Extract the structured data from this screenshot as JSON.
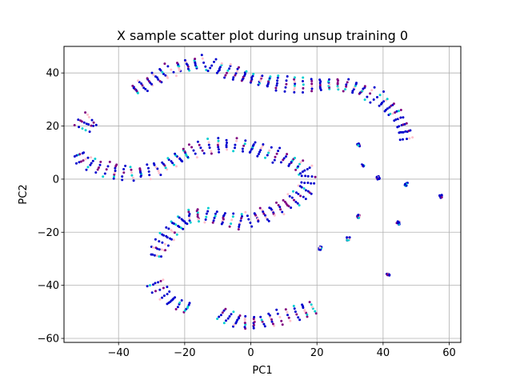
{
  "chart_data": {
    "type": "scatter",
    "title": "X sample scatter plot during unsup training 0",
    "xlabel": "PC1",
    "ylabel": "PC2",
    "xlim": [
      -56.5,
      63.5
    ],
    "ylim": [
      -61.5,
      50.0
    ],
    "grid": true,
    "xticks": [
      -40,
      -20,
      0,
      20,
      40,
      60
    ],
    "xtick_labels": [
      "−40",
      "−20",
      "0",
      "20",
      "40",
      "60"
    ],
    "yticks": [
      -60,
      -40,
      -20,
      0,
      20,
      40
    ],
    "ytick_labels": [
      "−60",
      "−40",
      "−20",
      "0",
      "20",
      "40"
    ],
    "colors": [
      "#0000cd",
      "#800080",
      "#00ced1",
      "#ffc0cb"
    ],
    "arcs": [
      {
        "points": [
          [
            -36,
            33
          ],
          [
            -30,
            37
          ],
          [
            -24,
            41.5
          ],
          [
            -19,
            43
          ],
          [
            -14,
            44
          ],
          [
            -10,
            42
          ],
          [
            -5,
            40
          ],
          [
            0,
            38
          ],
          [
            6,
            36.5
          ],
          [
            13,
            35.5
          ],
          [
            20,
            35.5
          ],
          [
            27,
            35.8
          ],
          [
            33,
            34
          ],
          [
            38,
            31
          ],
          [
            43,
            26
          ],
          [
            46,
            20
          ],
          [
            47.3,
            14
          ]
        ],
        "n": 260
      },
      {
        "points": [
          [
            -51.5,
            18
          ],
          [
            -49.5,
            22
          ],
          [
            -47.5,
            23.5
          ]
        ],
        "n": 30
      },
      {
        "points": [
          [
            -52.5,
            10.5
          ],
          [
            -50.5,
            7
          ],
          [
            -47.5,
            5
          ],
          [
            -42,
            3
          ],
          [
            -36,
            2
          ],
          [
            -30,
            3
          ],
          [
            -25,
            5.5
          ],
          [
            -20,
            9.5
          ],
          [
            -15,
            11.8
          ],
          [
            -10,
            12.8
          ],
          [
            -5,
            13
          ],
          [
            0,
            12
          ],
          [
            5,
            10
          ],
          [
            10,
            8
          ],
          [
            15,
            5
          ],
          [
            17.5,
            2
          ],
          [
            17,
            -3
          ],
          [
            14,
            -7
          ],
          [
            9,
            -11
          ],
          [
            3,
            -14
          ],
          [
            -3,
            -16
          ],
          [
            -8,
            -15
          ],
          [
            -14,
            -13.5
          ],
          [
            -19,
            -14
          ],
          [
            -22,
            -17
          ],
          [
            -25,
            -21
          ],
          [
            -27.5,
            -25
          ],
          [
            -29,
            -30
          ]
        ],
        "n": 340
      },
      {
        "points": [
          [
            -29.5,
            -38
          ],
          [
            -27,
            -43
          ],
          [
            -23.5,
            -46.5
          ],
          [
            -20,
            -48
          ],
          [
            -18,
            -49
          ]
        ],
        "n": 60
      },
      {
        "points": [
          [
            -10,
            -50
          ],
          [
            -6,
            -52.5
          ],
          [
            -3,
            -54
          ],
          [
            3,
            -54
          ],
          [
            9,
            -52
          ],
          [
            15,
            -50
          ],
          [
            20,
            -48
          ]
        ],
        "n": 110
      }
    ],
    "clusters": [
      [
        32.5,
        13
      ],
      [
        34,
        5
      ],
      [
        38.5,
        0.5
      ],
      [
        47,
        -2
      ],
      [
        57.5,
        -6.5
      ],
      [
        32.5,
        -14
      ],
      [
        44.5,
        -16.5
      ],
      [
        29.5,
        -22.5
      ],
      [
        21,
        -26
      ],
      [
        41.5,
        -36
      ]
    ]
  }
}
